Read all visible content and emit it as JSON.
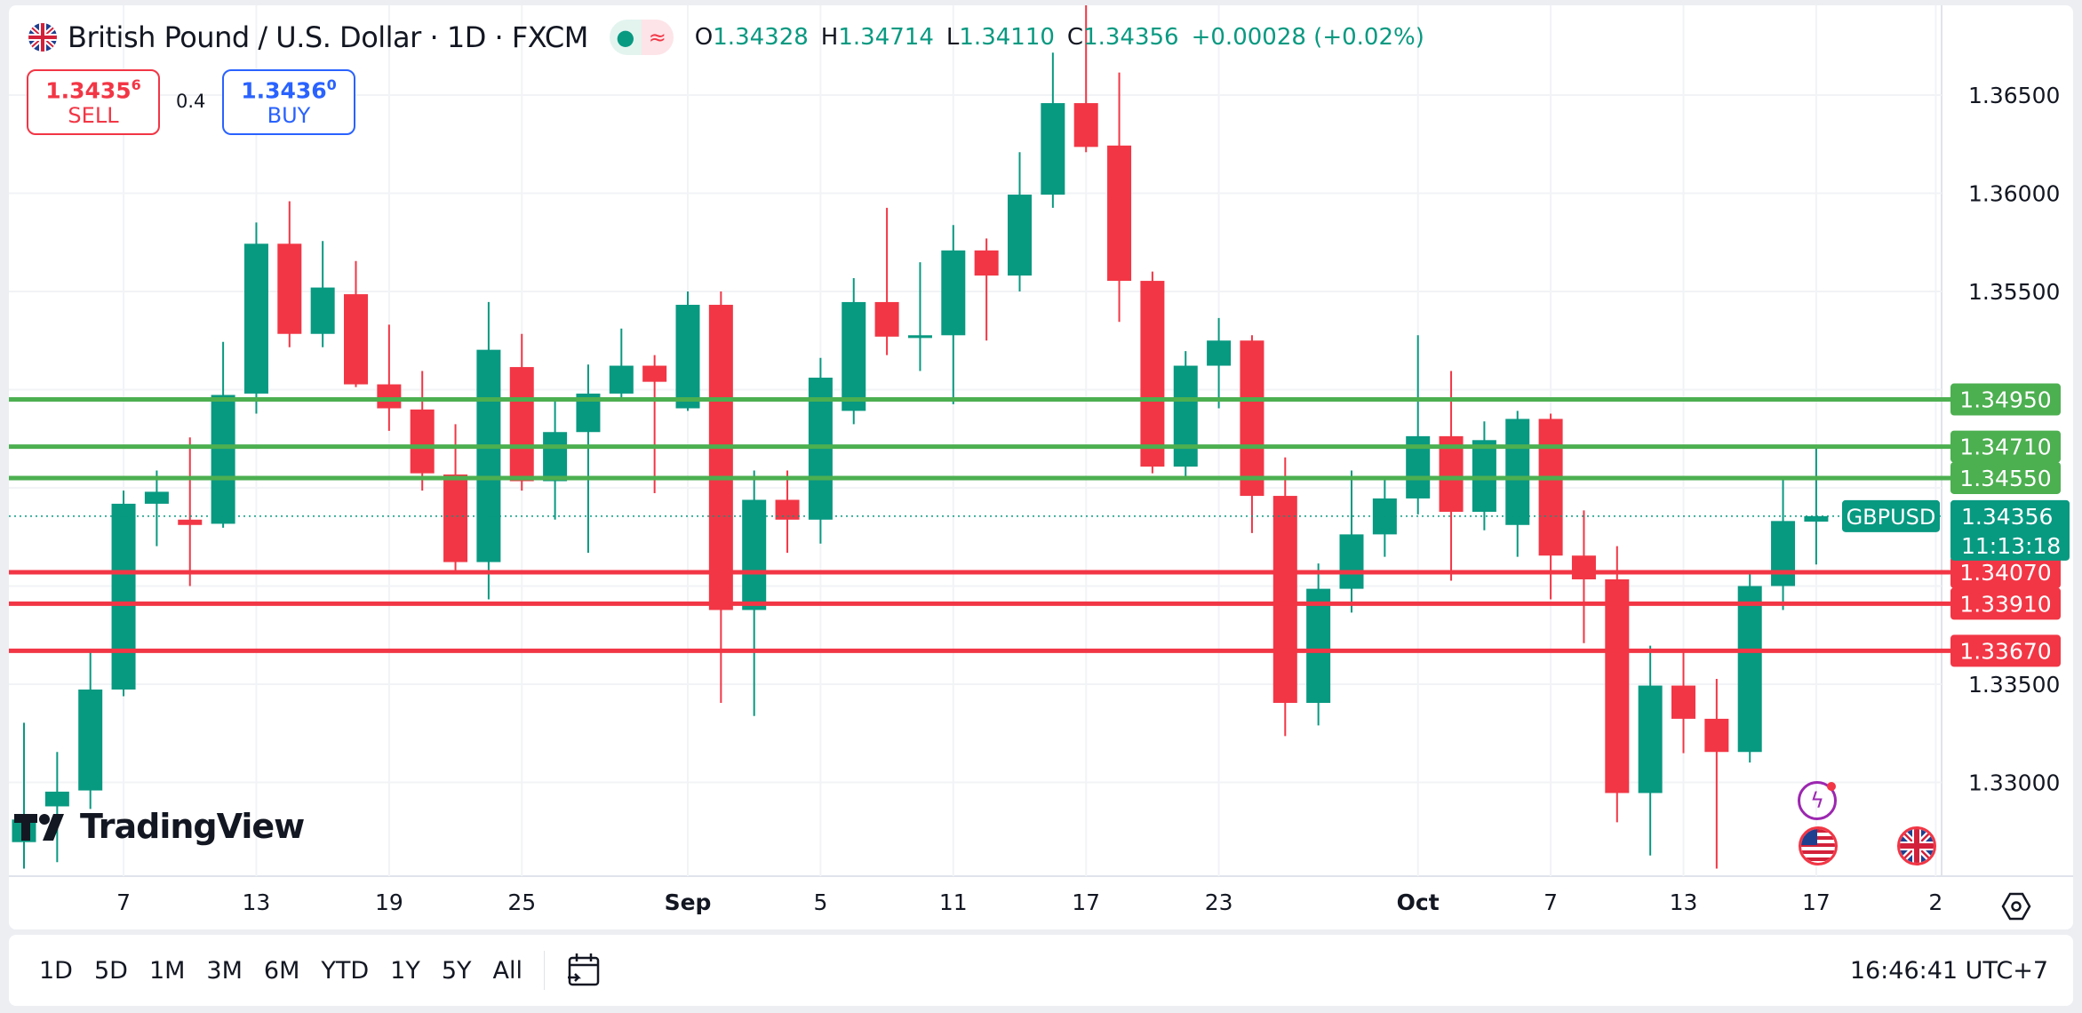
{
  "header": {
    "title": "British Pound / U.S. Dollar · 1D · FXCM",
    "o_label": "O",
    "o": "1.34328",
    "h_label": "H",
    "h": "1.34714",
    "l_label": "L",
    "l": "1.34110",
    "c_label": "C",
    "c": "1.34356",
    "change": "+0.00028 (+0.02%)",
    "flag_icon": "gb-us-flag-icon",
    "status_icon": "market-open-dot-icon",
    "delay_icon": "wave-icon"
  },
  "trade": {
    "sell_price": "1.3435",
    "sell_sup": "6",
    "sell_label": "SELL",
    "spread": "0.4",
    "buy_price": "1.3436",
    "buy_sup": "0",
    "buy_label": "BUY"
  },
  "colors": {
    "up": "#089981",
    "down": "#f23645",
    "support_line": "#4caf50",
    "resistance_line": "#f23645",
    "buy": "#2962ff"
  },
  "chart_data": {
    "type": "candlestick",
    "symbol_label": "GBPUSD",
    "last_price": "1.34356",
    "countdown": "11:13:18",
    "ylim": [
      1.3255,
      1.3698
    ],
    "y_ticks": [
      "1.36500",
      "1.36000",
      "1.35500",
      "1.33500",
      "1.33000"
    ],
    "y_tick_values": [
      1.365,
      1.36,
      1.355,
      1.335,
      1.33
    ],
    "x_ticks": [
      "7",
      "13",
      "19",
      "25",
      "Sep",
      "5",
      "11",
      "17",
      "23",
      "Oct",
      "7",
      "13",
      "17",
      "2"
    ],
    "green_levels": [
      {
        "value": 1.3495,
        "label": "1.34950"
      },
      {
        "value": 1.3471,
        "label": "1.34710"
      },
      {
        "value": 1.3455,
        "label": "1.34550"
      }
    ],
    "red_levels": [
      {
        "value": 1.3407,
        "label": "1.34070"
      },
      {
        "value": 1.3391,
        "label": "1.33910"
      },
      {
        "value": 1.3367,
        "label": "1.33670"
      }
    ],
    "ohlc": [
      [
        1.32696,
        1.33304,
        1.32561,
        1.32811
      ],
      [
        1.32878,
        1.33155,
        1.32594,
        1.32953
      ],
      [
        1.32959,
        1.33676,
        1.32865,
        1.33473
      ],
      [
        1.33473,
        1.34486,
        1.33439,
        1.34419
      ],
      [
        1.34419,
        1.34588,
        1.34203,
        1.3448
      ],
      [
        1.34338,
        1.34757,
        1.34,
        1.34311
      ],
      [
        1.34317,
        1.35243,
        1.34297,
        1.34973
      ],
      [
        1.3498,
        1.35851,
        1.34878,
        1.35743
      ],
      [
        1.35743,
        1.35959,
        1.35216,
        1.35284
      ],
      [
        1.35284,
        1.35757,
        1.35216,
        1.3552
      ],
      [
        1.35486,
        1.35655,
        1.35013,
        1.35027
      ],
      [
        1.35027,
        1.35331,
        1.3479,
        1.34905
      ],
      [
        1.34899,
        1.35095,
        1.34486,
        1.34574
      ],
      [
        1.34568,
        1.34824,
        1.34067,
        1.34122
      ],
      [
        1.34122,
        1.35446,
        1.33932,
        1.35203
      ],
      [
        1.35115,
        1.35284,
        1.34486,
        1.34534
      ],
      [
        1.34534,
        1.34959,
        1.34338,
        1.34784
      ],
      [
        1.34784,
        1.35128,
        1.34169,
        1.3498
      ],
      [
        1.3498,
        1.35311,
        1.34959,
        1.35122
      ],
      [
        1.35122,
        1.35176,
        1.34473,
        1.3504
      ],
      [
        1.34905,
        1.355,
        1.34892,
        1.35432
      ],
      [
        1.35432,
        1.355,
        1.33405,
        1.33878
      ],
      [
        1.33878,
        1.34588,
        1.33338,
        1.34439
      ],
      [
        1.34439,
        1.34588,
        1.34169,
        1.34338
      ],
      [
        1.34338,
        1.35162,
        1.34216,
        1.35061
      ],
      [
        1.34892,
        1.35568,
        1.34824,
        1.35446
      ],
      [
        1.35446,
        1.35926,
        1.35176,
        1.3527
      ],
      [
        1.35263,
        1.35649,
        1.35095,
        1.35277
      ],
      [
        1.35277,
        1.35838,
        1.34926,
        1.35709
      ],
      [
        1.35709,
        1.3577,
        1.3525,
        1.35581
      ],
      [
        1.35581,
        1.36209,
        1.355,
        1.35993
      ],
      [
        1.35993,
        1.36716,
        1.35926,
        1.36459
      ],
      [
        1.36459,
        1.36973,
        1.36209,
        1.36236
      ],
      [
        1.36243,
        1.36615,
        1.35345,
        1.35554
      ],
      [
        1.35554,
        1.35601,
        1.34574,
        1.34608
      ],
      [
        1.34608,
        1.35196,
        1.3454,
        1.35122
      ],
      [
        1.35122,
        1.35365,
        1.34905,
        1.3525
      ],
      [
        1.3525,
        1.35277,
        1.3427,
        1.34459
      ],
      [
        1.34459,
        1.34655,
        1.33236,
        1.33405
      ],
      [
        1.33405,
        1.34115,
        1.3329,
        1.33986
      ],
      [
        1.33986,
        1.34588,
        1.33865,
        1.34263
      ],
      [
        1.34263,
        1.34554,
        1.34149,
        1.34446
      ],
      [
        1.34446,
        1.35277,
        1.34365,
        1.34763
      ],
      [
        1.34763,
        1.35095,
        1.34027,
        1.34378
      ],
      [
        1.34378,
        1.34838,
        1.34284,
        1.34743
      ],
      [
        1.34311,
        1.34892,
        1.34149,
        1.34851
      ],
      [
        1.34851,
        1.34878,
        1.33932,
        1.34155
      ],
      [
        1.34155,
        1.34385,
        1.33709,
        1.34034
      ],
      [
        1.34034,
        1.34203,
        1.32797,
        1.32946
      ],
      [
        1.32946,
        1.33696,
        1.32628,
        1.33493
      ],
      [
        1.33493,
        1.33662,
        1.33149,
        1.33324
      ],
      [
        1.33324,
        1.33527,
        1.32561,
        1.33155
      ],
      [
        1.33155,
        1.34067,
        1.33101,
        1.34
      ],
      [
        1.34,
        1.34554,
        1.33878,
        1.34331
      ],
      [
        1.34328,
        1.34714,
        1.3411,
        1.34356
      ]
    ]
  },
  "logo": {
    "text": "TradingView"
  },
  "chart_icons": [
    "lightning-icon",
    "us-flag-icon",
    "gb-flag-icon",
    "settings-icon"
  ],
  "toolbar": {
    "ranges": [
      "1D",
      "5D",
      "1M",
      "3M",
      "6M",
      "YTD",
      "1Y",
      "5Y",
      "All"
    ],
    "date_range_icon": "calendar-goto-icon",
    "clock": "16:46:41 UTC+7"
  }
}
